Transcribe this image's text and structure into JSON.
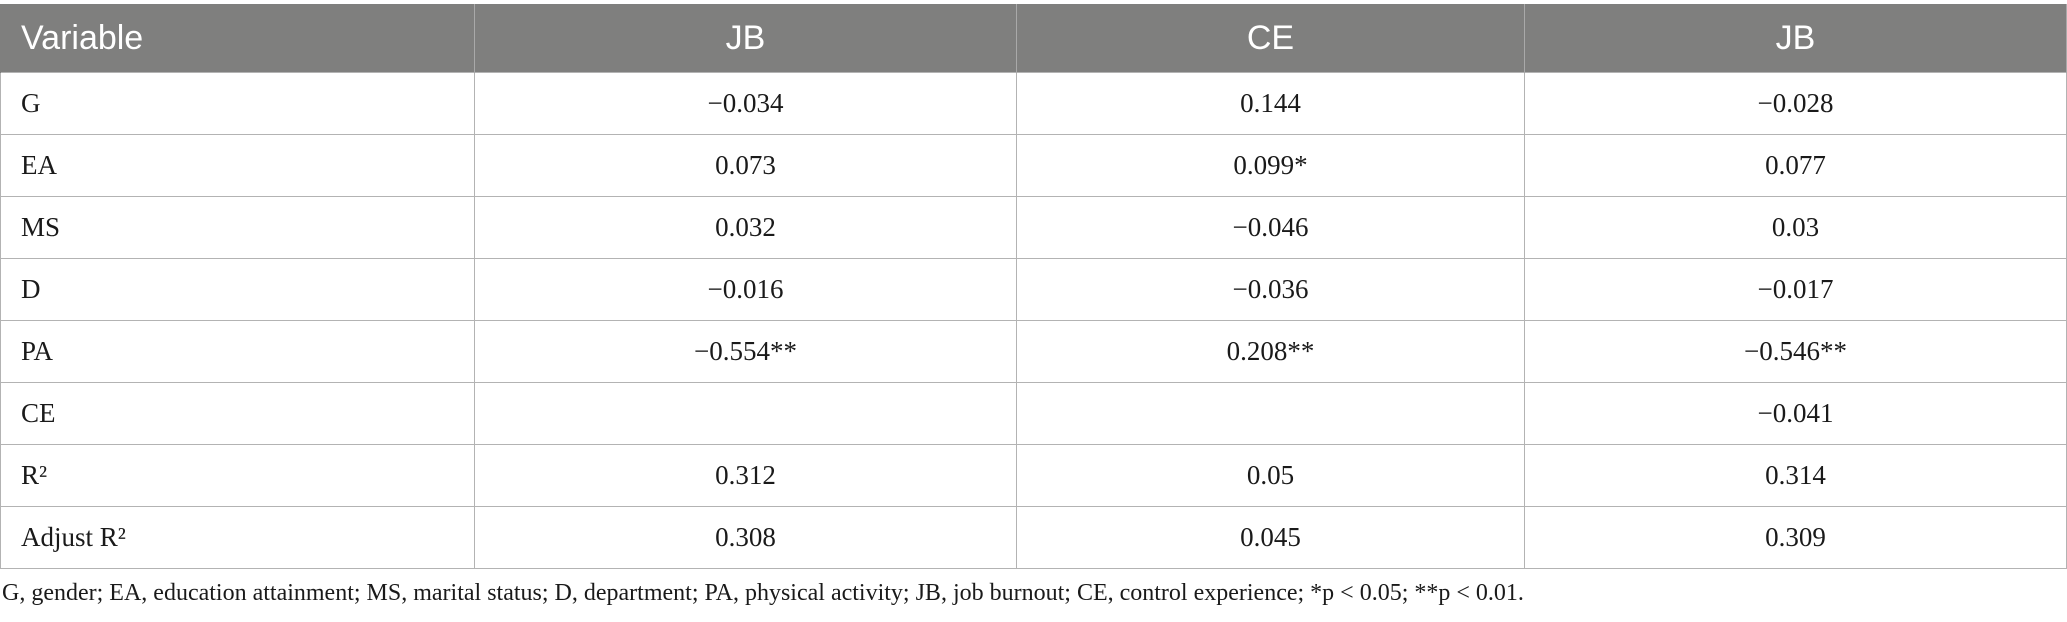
{
  "table": {
    "headers": [
      "Variable",
      "JB",
      "CE",
      "JB"
    ],
    "rows": [
      [
        "G",
        "−0.034",
        "0.144",
        "−0.028"
      ],
      [
        "EA",
        "0.073",
        "0.099*",
        "0.077"
      ],
      [
        "MS",
        "0.032",
        "−0.046",
        "0.03"
      ],
      [
        "D",
        "−0.016",
        "−0.036",
        "−0.017"
      ],
      [
        "PA",
        "−0.554**",
        "0.208**",
        "−0.546**"
      ],
      [
        "CE",
        "",
        "",
        "−0.041"
      ],
      [
        "R²",
        "0.312",
        "0.05",
        "0.314"
      ],
      [
        "Adjust R²",
        "0.308",
        "0.045",
        "0.309"
      ]
    ]
  },
  "footnote": "G, gender; EA, education attainment; MS, marital status; D, department; PA, physical activity; JB, job burnout; CE, control experience; *p < 0.05; **p < 0.01."
}
